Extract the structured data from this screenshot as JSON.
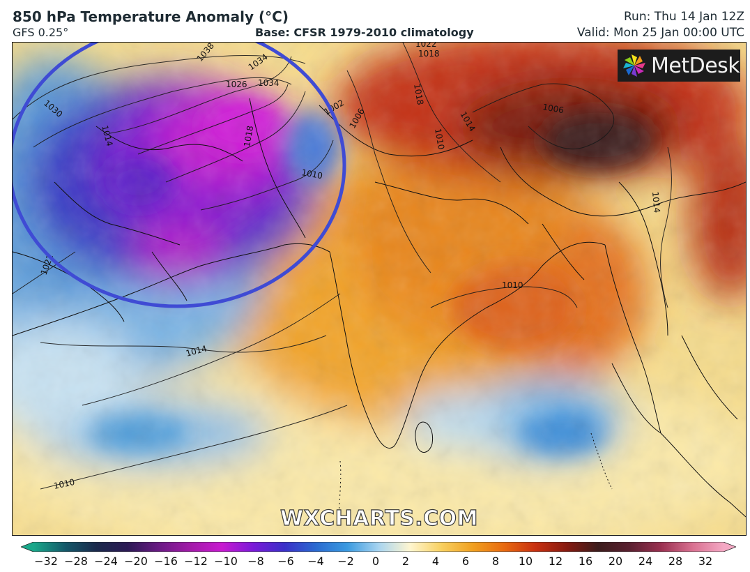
{
  "header": {
    "title": "850 hPa Temperature Anomaly (°C)",
    "model": "GFS 0.25°",
    "base": "Base: CFSR 1979-2010 climatology",
    "run": "Run: Thu 14 Jan 12Z",
    "valid": "Valid: Mon 25 Jan 00:00 UTC"
  },
  "logo": {
    "text": "MetDesk",
    "icon": "metdesk-pinwheel-logo"
  },
  "watermark": "WXCHARTS.COM",
  "annotation": {
    "shape": "ellipse",
    "color": "#3f4bd4"
  },
  "contours": [
    {
      "label": "1030"
    },
    {
      "label": "1034"
    },
    {
      "label": "1038"
    },
    {
      "label": "1034"
    },
    {
      "label": "1026"
    },
    {
      "label": "1018"
    },
    {
      "label": "1010"
    },
    {
      "label": "1006"
    },
    {
      "label": "1002"
    },
    {
      "label": "1022"
    },
    {
      "label": "1014"
    },
    {
      "label": "1010"
    },
    {
      "label": "1014"
    },
    {
      "label": "1022"
    },
    {
      "label": "1018"
    },
    {
      "label": "1018"
    },
    {
      "label": "1014"
    },
    {
      "label": "1006"
    },
    {
      "label": "1010"
    },
    {
      "label": "1014"
    },
    {
      "label": "1010"
    }
  ],
  "colorbar": {
    "ticks": [
      "−32",
      "−28",
      "−24",
      "−20",
      "−16",
      "−12",
      "−10",
      "−8",
      "−6",
      "−4",
      "−2",
      "0",
      "2",
      "4",
      "6",
      "8",
      "10",
      "12",
      "16",
      "20",
      "24",
      "28",
      "32"
    ],
    "colors": [
      "#1aa88a",
      "#14596a",
      "#1b2a4c",
      "#2c1a55",
      "#6a1a84",
      "#a21aa8",
      "#c81ad0",
      "#7a1ad8",
      "#3a30c8",
      "#2a6ad0",
      "#3a9ae0",
      "#a8d4f0",
      "#fff6d0",
      "#f8d060",
      "#f0a020",
      "#e86a10",
      "#c83010",
      "#861a10",
      "#3c1c1c",
      "#5a2030",
      "#9a3050",
      "#d87090",
      "#f4a8c4"
    ]
  }
}
